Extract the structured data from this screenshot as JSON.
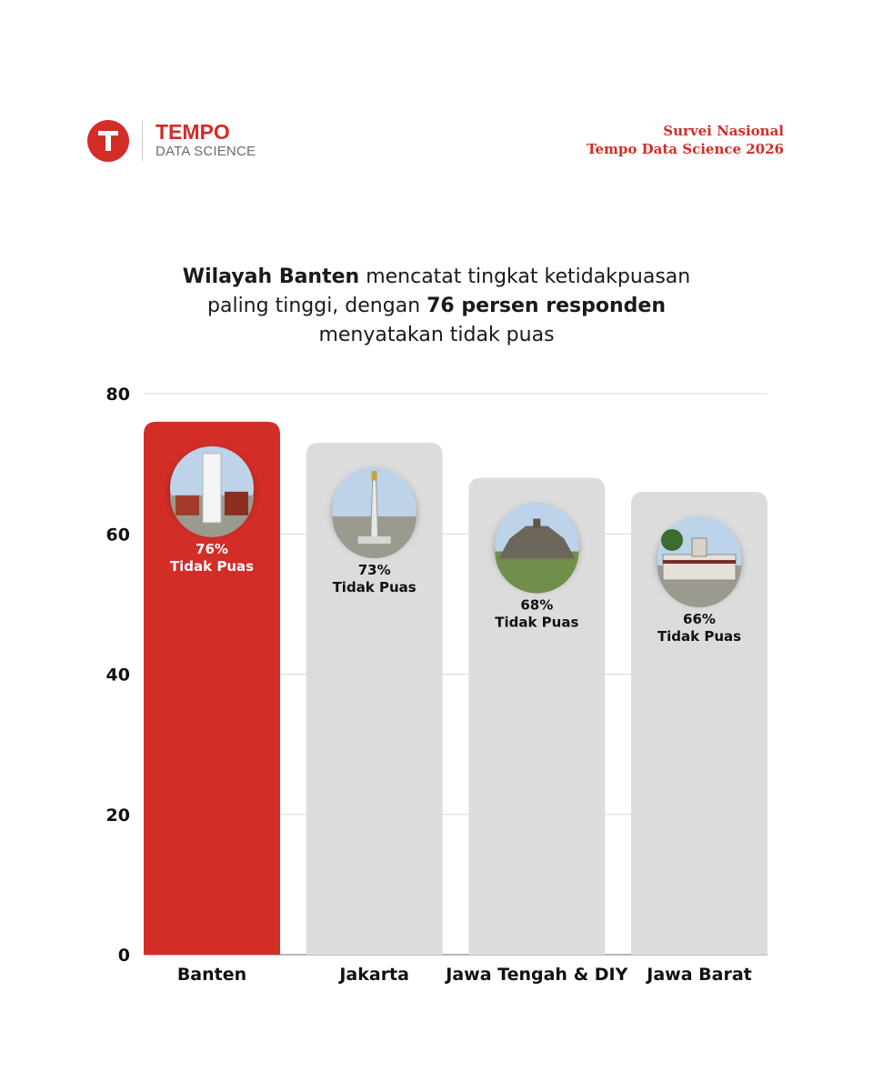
{
  "header": {
    "brand_name": "TEMPO",
    "brand_sub": "DATA SCIENCE",
    "survey_line1": "Survei Nasional",
    "survey_line2": "Tempo Data Science 2026"
  },
  "headline": {
    "l1_bold": "Wilayah Banten",
    "l1_rest": " mencatat tingkat ketidakpuasan",
    "l2_pre": "paling tinggi, dengan ",
    "l2_bold": "76 persen responden",
    "l3": "menyatakan tidak puas"
  },
  "colors": {
    "accent": "#d22d27",
    "bar_other": "#dcdcdc",
    "grid": "#d9d9d9"
  },
  "chart_data": {
    "type": "bar",
    "categories": [
      "Banten",
      "Jakarta",
      "Jawa Tengah & DIY",
      "Jawa Barat"
    ],
    "values": [
      76,
      73,
      68,
      66
    ],
    "value_labels": [
      "76%",
      "73%",
      "68%",
      "66%"
    ],
    "value_sublabel": "Tidak Puas",
    "icons": [
      "banten-lighthouse-photo-icon",
      "monas-monument-photo-icon",
      "borobudur-temple-photo-icon",
      "gedung-sate-photo-icon"
    ],
    "highlight_index": 0,
    "yticks": [
      0,
      20,
      40,
      60,
      80
    ],
    "ylim": [
      0,
      80
    ],
    "grid": true,
    "title": "",
    "xlabel": "",
    "ylabel": ""
  }
}
